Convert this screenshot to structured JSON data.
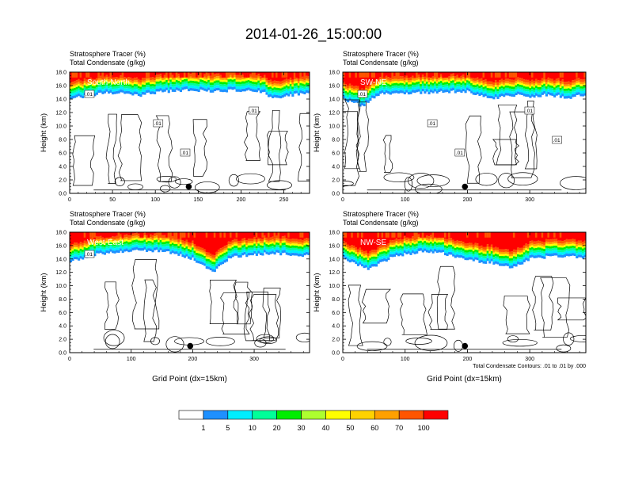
{
  "title": "2014-01-26_15:00:00",
  "chart_data": [
    {
      "type": "heatmap",
      "id": "south-north",
      "panel_label": "South-North",
      "title_line1": "Stratosphere Tracer   (%)",
      "title_line2": "Total Condensate   (g/kg)",
      "ylabel": "Height (km)",
      "xlabel": "",
      "xlim": [
        0,
        280
      ],
      "ylim": [
        0,
        18
      ],
      "xticks": [
        0,
        50,
        100,
        150,
        200,
        250
      ],
      "yticks": [
        "0.0",
        "2.0",
        "4.0",
        "6.0",
        "8.0",
        "10.0",
        "12.0",
        "14.0",
        "16.0",
        "18.0"
      ],
      "contour_labels": [
        ".01",
        ".01",
        ".01",
        ".01"
      ],
      "marker": {
        "x": 139,
        "y": 1.0
      },
      "tropopause_km": [
        [
          0,
          14.8
        ],
        [
          20,
          15.0
        ],
        [
          40,
          15.5
        ],
        [
          60,
          15.4
        ],
        [
          80,
          15.1
        ],
        [
          100,
          15.6
        ],
        [
          120,
          15.8
        ],
        [
          140,
          15.9
        ],
        [
          160,
          15.7
        ],
        [
          180,
          15.8
        ],
        [
          200,
          15.9
        ],
        [
          220,
          15.8
        ],
        [
          240,
          14.6
        ],
        [
          260,
          15.2
        ],
        [
          280,
          15.4
        ]
      ]
    },
    {
      "type": "heatmap",
      "id": "sw-ne",
      "panel_label": "SW-NE",
      "title_line1": "Stratosphere Tracer   (%)",
      "title_line2": "Total Condensate   (g/kg)",
      "ylabel": "Height (km)",
      "xlabel": "",
      "xlim": [
        0,
        390
      ],
      "ylim": [
        0,
        18
      ],
      "xticks": [
        0,
        100,
        200,
        300
      ],
      "yticks": [
        "0.0",
        "2.0",
        "4.0",
        "6.0",
        "8.0",
        "10.0",
        "12.0",
        "14.0",
        "16.0",
        "18.0"
      ],
      "contour_labels": [
        ".01",
        ".01",
        ".01",
        ".01",
        ".01",
        ".01"
      ],
      "marker": {
        "x": 196,
        "y": 1.0
      },
      "tropopause_km": [
        [
          0,
          14.5
        ],
        [
          30,
          13.6
        ],
        [
          60,
          15.5
        ],
        [
          100,
          15.4
        ],
        [
          150,
          15.6
        ],
        [
          200,
          15.7
        ],
        [
          240,
          14.6
        ],
        [
          270,
          15.2
        ],
        [
          300,
          15.0
        ],
        [
          330,
          15.2
        ],
        [
          360,
          14.8
        ],
        [
          390,
          15.2
        ]
      ]
    },
    {
      "type": "heatmap",
      "id": "west-east",
      "panel_label": "West-East",
      "title_line1": "Stratosphere Tracer   (%)",
      "title_line2": "Total Condensate   (g/kg)",
      "ylabel": "Height (km)",
      "xlabel": "Grid Point (dx=15km)",
      "xlim": [
        0,
        390
      ],
      "ylim": [
        0,
        18
      ],
      "xticks": [
        0,
        100,
        200,
        300
      ],
      "yticks": [
        "0.0",
        "2.0",
        "4.0",
        "6.0",
        "8.0",
        "10.0",
        "12.0",
        "14.0",
        "16.0",
        "18.0"
      ],
      "contour_labels": [
        ".01"
      ],
      "marker": {
        "x": 196,
        "y": 1.0
      },
      "tropopause_km": [
        [
          0,
          14.3
        ],
        [
          40,
          15.2
        ],
        [
          80,
          15.6
        ],
        [
          120,
          15.9
        ],
        [
          160,
          15.6
        ],
        [
          200,
          14.6
        ],
        [
          230,
          12.5
        ],
        [
          260,
          14.8
        ],
        [
          300,
          15.3
        ],
        [
          340,
          15.4
        ],
        [
          390,
          15.0
        ]
      ]
    },
    {
      "type": "heatmap",
      "id": "nw-se",
      "panel_label": "NW-SE",
      "title_line1": "Stratosphere Tracer   (%)",
      "title_line2": "Total Condensate   (g/kg)",
      "ylabel": "Height (km)",
      "xlabel": "Grid Point (dx=15km)",
      "xlim": [
        0,
        390
      ],
      "ylim": [
        0,
        18
      ],
      "xticks": [
        0,
        100,
        200,
        300
      ],
      "yticks": [
        "0.0",
        "2.0",
        "4.0",
        "6.0",
        "8.0",
        "10.0",
        "12.0",
        "14.0",
        "16.0",
        "18.0"
      ],
      "contour_labels": [],
      "marker": {
        "x": 196,
        "y": 1.0
      },
      "tropopause_km": [
        [
          0,
          14.6
        ],
        [
          40,
          13.0
        ],
        [
          80,
          15.0
        ],
        [
          120,
          15.6
        ],
        [
          160,
          15.4
        ],
        [
          200,
          14.4
        ],
        [
          240,
          14.0
        ],
        [
          270,
          13.2
        ],
        [
          300,
          14.6
        ],
        [
          340,
          15.0
        ],
        [
          390,
          14.8
        ]
      ]
    }
  ],
  "contour_note": "Total Condensate Contours: .01 to .01 by .000",
  "colorbar": {
    "labels": [
      "1",
      "5",
      "10",
      "20",
      "30",
      "40",
      "50",
      "60",
      "70",
      "100"
    ],
    "colors": [
      "#ffffff",
      "#1e90ff",
      "#00eeff",
      "#00ff99",
      "#00ee00",
      "#adff2f",
      "#ffff00",
      "#ffd200",
      "#ffa000",
      "#ff5500",
      "#ff0000"
    ]
  }
}
